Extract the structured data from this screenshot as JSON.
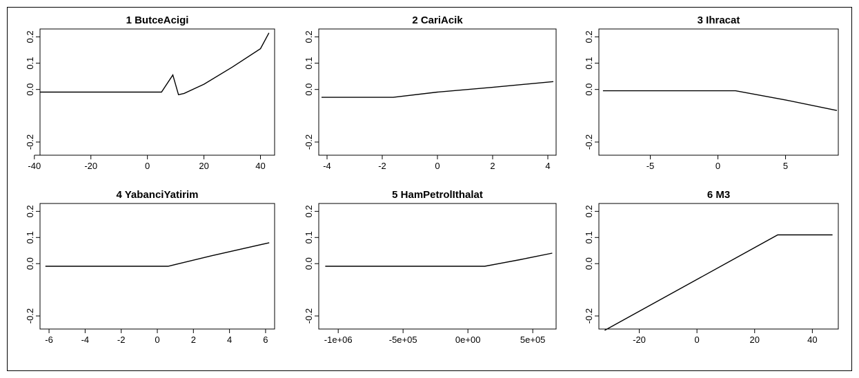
{
  "chart_data": [
    {
      "type": "line",
      "title": "1  ButceAcigi",
      "xlabel": "",
      "ylabel": "",
      "xlim": [
        -38,
        45
      ],
      "ylim": [
        -0.25,
        0.23
      ],
      "xticks": [
        -40,
        -20,
        0,
        20,
        40
      ],
      "xtick_labels": [
        "-40",
        "-20",
        "0",
        "20",
        "40"
      ],
      "yticks": [
        -0.2,
        0.0,
        0.1,
        0.2
      ],
      "ytick_labels": [
        "-0.2",
        "0.0",
        "0.1",
        "0.2"
      ],
      "series": [
        {
          "x": [
            -38,
            -20,
            0,
            5,
            9,
            11,
            13,
            20,
            30,
            40,
            43
          ],
          "y": [
            -0.01,
            -0.01,
            -0.01,
            -0.01,
            0.055,
            -0.02,
            -0.015,
            0.02,
            0.085,
            0.155,
            0.215
          ]
        }
      ]
    },
    {
      "type": "line",
      "title": "2  CariAcik",
      "xlabel": "",
      "ylabel": "",
      "xlim": [
        -4.3,
        4.3
      ],
      "ylim": [
        -0.25,
        0.23
      ],
      "xticks": [
        -4,
        -2,
        0,
        2,
        4
      ],
      "xtick_labels": [
        "-4",
        "-2",
        "0",
        "2",
        "4"
      ],
      "yticks": [
        -0.2,
        0.0,
        0.1,
        0.2
      ],
      "ytick_labels": [
        "-0.2",
        "0.0",
        "0.1",
        "0.2"
      ],
      "series": [
        {
          "x": [
            -4.2,
            -1.6,
            0,
            2,
            4.2
          ],
          "y": [
            -0.03,
            -0.03,
            -0.01,
            0.008,
            0.03
          ]
        }
      ]
    },
    {
      "type": "line",
      "title": "3  Ihracat",
      "xlabel": "",
      "ylabel": "",
      "xlim": [
        -8.8,
        8.9
      ],
      "ylim": [
        -0.25,
        0.23
      ],
      "xticks": [
        -5,
        0,
        5
      ],
      "xtick_labels": [
        "-5",
        "0",
        "5"
      ],
      "yticks": [
        -0.2,
        0.0,
        0.1,
        0.2
      ],
      "ytick_labels": [
        "-0.2",
        "0.0",
        "0.1",
        "0.2"
      ],
      "series": [
        {
          "x": [
            -8.5,
            1.3,
            5,
            8.8
          ],
          "y": [
            -0.005,
            -0.005,
            -0.04,
            -0.08
          ]
        }
      ]
    },
    {
      "type": "line",
      "title": "4  YabanciYatirim",
      "xlabel": "",
      "ylabel": "",
      "xlim": [
        -6.5,
        6.5
      ],
      "ylim": [
        -0.25,
        0.23
      ],
      "xticks": [
        -6,
        -4,
        -2,
        0,
        2,
        4,
        6
      ],
      "xtick_labels": [
        "-6",
        "-4",
        "-2",
        "0",
        "2",
        "4",
        "6"
      ],
      "yticks": [
        -0.2,
        0.0,
        0.1,
        0.2
      ],
      "ytick_labels": [
        "-0.2",
        "0.0",
        "0.1",
        "0.2"
      ],
      "series": [
        {
          "x": [
            -6.2,
            0.6,
            3,
            6.2
          ],
          "y": [
            -0.01,
            -0.01,
            0.03,
            0.08
          ]
        }
      ]
    },
    {
      "type": "line",
      "title": "5  HamPetrolIthalat",
      "xlabel": "",
      "ylabel": "",
      "xlim": [
        -1150000,
        680000
      ],
      "ylim": [
        -0.25,
        0.23
      ],
      "xticks": [
        -1000000,
        -500000,
        0,
        500000
      ],
      "xtick_labels": [
        "-1e+06",
        "-5e+05",
        "0e+00",
        "5e+05"
      ],
      "yticks": [
        -0.2,
        0.0,
        0.1,
        0.2
      ],
      "ytick_labels": [
        "-0.2",
        "0.0",
        "0.1",
        "0.2"
      ],
      "series": [
        {
          "x": [
            -1100000,
            130000,
            400000,
            650000
          ],
          "y": [
            -0.01,
            -0.01,
            0.015,
            0.04
          ]
        }
      ]
    },
    {
      "type": "line",
      "title": "6  M3",
      "xlabel": "",
      "ylabel": "",
      "xlim": [
        -34,
        49
      ],
      "ylim": [
        -0.25,
        0.23
      ],
      "xticks": [
        -20,
        0,
        20,
        40
      ],
      "xtick_labels": [
        "-20",
        "0",
        "20",
        "40"
      ],
      "yticks": [
        -0.2,
        0.0,
        0.1,
        0.2
      ],
      "ytick_labels": [
        "-0.2",
        "0.0",
        "0.1",
        "0.2"
      ],
      "series": [
        {
          "x": [
            -32,
            28,
            47
          ],
          "y": [
            -0.255,
            0.11,
            0.11
          ]
        }
      ]
    }
  ]
}
